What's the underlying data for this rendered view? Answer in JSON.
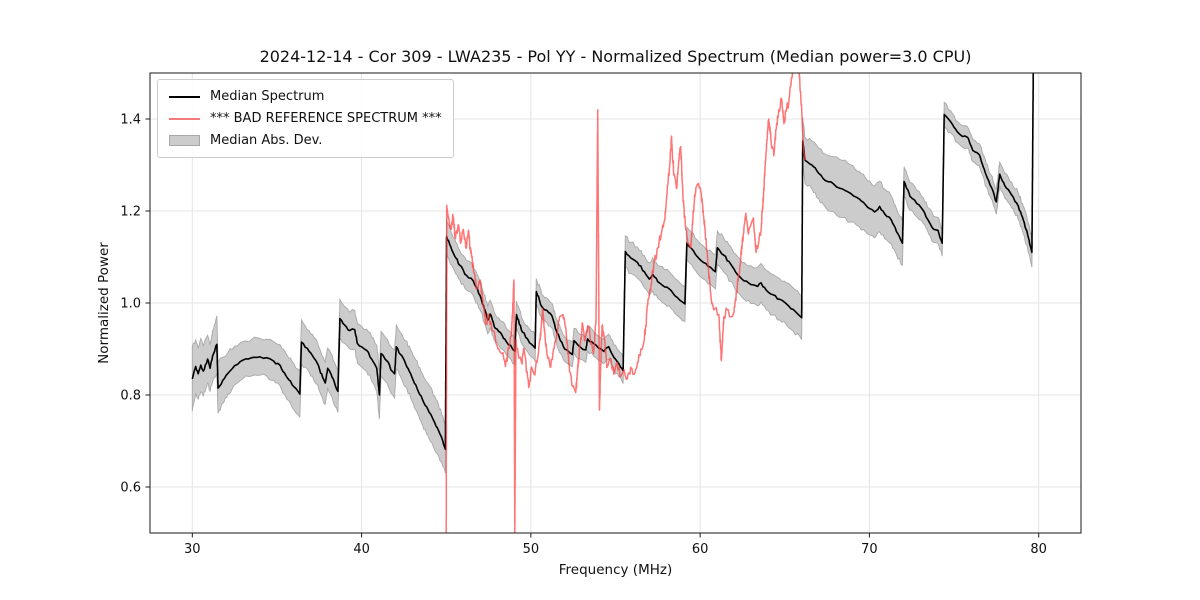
{
  "chart_data": {
    "type": "line",
    "title": "2024-12-14 - Cor 309 - LWA235 - Pol YY - Normalized Spectrum (Median power=3.0 CPU)",
    "xlabel": "Frequency (MHz)",
    "ylabel": "Normalized Power",
    "xlim": [
      27.5,
      82.5
    ],
    "ylim": [
      0.5,
      1.5
    ],
    "xticks": [
      30,
      40,
      50,
      60,
      70,
      80
    ],
    "xtick_labels": [
      "30",
      "40",
      "50",
      "60",
      "70",
      "80"
    ],
    "yticks": [
      0.6,
      0.8,
      1.0,
      1.2,
      1.4
    ],
    "ytick_labels": [
      "0.6",
      "0.8",
      "1.0",
      "1.2",
      "1.4"
    ],
    "grid": true,
    "grid_color": "#e4e4e4",
    "background": "#ffffff",
    "legend_position": "upper-left",
    "legend": [
      {
        "label": "Median Spectrum",
        "color": "#000000",
        "type": "line"
      },
      {
        "label": "*** BAD REFERENCE SPECTRUM ***",
        "color": "#f57b7b",
        "type": "line"
      },
      {
        "label": "Median Abs. Dev.",
        "color": "#cccccc",
        "type": "patch"
      }
    ],
    "series": {
      "median": {
        "name": "Median Spectrum",
        "color": "#000000",
        "x": [
          30.0,
          30.2,
          30.35,
          30.5,
          30.65,
          30.9,
          31.05,
          31.2,
          31.45,
          31.52,
          31.8,
          32.1,
          32.5,
          33.0,
          33.5,
          34.0,
          34.4,
          34.8,
          35.2,
          35.6,
          36.0,
          36.35,
          36.45,
          36.9,
          37.4,
          37.7,
          37.85,
          38.0,
          38.2,
          38.45,
          38.6,
          38.72,
          39.0,
          39.3,
          39.6,
          39.75,
          40.0,
          40.3,
          40.6,
          40.9,
          41.05,
          41.15,
          41.5,
          41.8,
          41.95,
          42.05,
          42.3,
          42.6,
          42.9,
          43.2,
          43.6,
          44.0,
          44.4,
          44.8,
          44.95,
          45.02,
          45.4,
          45.8,
          46.2,
          46.6,
          47.0,
          47.25,
          47.45,
          47.6,
          47.9,
          48.1,
          48.3,
          48.55,
          48.8,
          49.05,
          49.15,
          49.5,
          49.8,
          50.05,
          50.25,
          50.32,
          50.65,
          50.95,
          51.25,
          51.5,
          51.75,
          52.0,
          52.3,
          52.45,
          52.55,
          52.9,
          53.25,
          53.35,
          53.7,
          54.0,
          54.3,
          54.6,
          54.9,
          55.2,
          55.45,
          55.58,
          55.9,
          56.3,
          56.7,
          57.0,
          57.2,
          57.5,
          57.9,
          58.2,
          58.5,
          58.8,
          59.1,
          59.22,
          59.5,
          59.8,
          60.2,
          60.6,
          60.9,
          61.02,
          61.4,
          61.8,
          62.2,
          62.6,
          63.0,
          63.4,
          63.6,
          63.9,
          64.3,
          64.7,
          65.1,
          65.5,
          66.0,
          66.06,
          66.2,
          66.6,
          67.0,
          67.4,
          67.9,
          68.4,
          68.9,
          69.4,
          69.9,
          70.3,
          70.6,
          70.9,
          71.3,
          71.6,
          71.95,
          72.05,
          72.4,
          72.8,
          73.2,
          73.5,
          73.8,
          74.05,
          74.3,
          74.42,
          74.8,
          75.2,
          75.5,
          75.8,
          76.1,
          76.5,
          76.9,
          77.2,
          77.5,
          77.7,
          78.0,
          78.4,
          78.8,
          79.1,
          79.35,
          79.6,
          79.68
        ],
        "y": [
          0.835,
          0.862,
          0.846,
          0.865,
          0.852,
          0.878,
          0.858,
          0.885,
          0.91,
          0.815,
          0.832,
          0.847,
          0.864,
          0.876,
          0.881,
          0.883,
          0.881,
          0.874,
          0.864,
          0.838,
          0.818,
          0.802,
          0.915,
          0.895,
          0.868,
          0.838,
          0.826,
          0.858,
          0.845,
          0.82,
          0.808,
          0.966,
          0.952,
          0.94,
          0.942,
          0.912,
          0.905,
          0.897,
          0.878,
          0.858,
          0.8,
          0.89,
          0.874,
          0.852,
          0.846,
          0.905,
          0.888,
          0.868,
          0.846,
          0.822,
          0.79,
          0.762,
          0.732,
          0.7,
          0.682,
          1.145,
          1.11,
          1.082,
          1.06,
          1.048,
          1.016,
          0.988,
          0.963,
          0.976,
          0.945,
          0.938,
          0.93,
          0.916,
          0.908,
          0.895,
          0.975,
          0.937,
          0.922,
          0.91,
          0.902,
          1.025,
          0.992,
          0.984,
          0.972,
          0.94,
          0.918,
          0.9,
          0.892,
          0.888,
          0.918,
          0.905,
          0.898,
          0.922,
          0.912,
          0.902,
          0.895,
          0.905,
          0.882,
          0.868,
          0.853,
          1.112,
          1.098,
          1.088,
          1.068,
          1.052,
          1.062,
          1.046,
          1.035,
          1.03,
          1.016,
          1.006,
          0.998,
          1.13,
          1.118,
          1.102,
          1.088,
          1.078,
          1.068,
          1.12,
          1.104,
          1.085,
          1.062,
          1.048,
          1.04,
          1.036,
          1.044,
          1.028,
          1.018,
          1.008,
          0.998,
          0.986,
          0.968,
          1.352,
          1.31,
          1.3,
          1.282,
          1.266,
          1.258,
          1.248,
          1.238,
          1.226,
          1.208,
          1.198,
          1.21,
          1.194,
          1.18,
          1.155,
          1.13,
          1.264,
          1.232,
          1.216,
          1.2,
          1.178,
          1.16,
          1.158,
          1.13,
          1.41,
          1.394,
          1.372,
          1.362,
          1.36,
          1.332,
          1.322,
          1.278,
          1.252,
          1.22,
          1.28,
          1.255,
          1.235,
          1.21,
          1.18,
          1.148,
          1.11,
          1.5
        ]
      },
      "mad": {
        "name": "Median Abs. Dev.",
        "fill": "#cccccc",
        "edge": "#a8a8a8",
        "half_width": [
          0.07,
          0.058,
          0.055,
          0.058,
          0.055,
          0.052,
          0.05,
          0.055,
          0.062,
          0.055,
          0.05,
          0.045,
          0.042,
          0.04,
          0.04,
          0.04,
          0.04,
          0.042,
          0.045,
          0.048,
          0.05,
          0.05,
          0.048,
          0.045,
          0.045,
          0.046,
          0.046,
          0.044,
          0.045,
          0.046,
          0.046,
          0.042,
          0.04,
          0.04,
          0.042,
          0.043,
          0.044,
          0.046,
          0.048,
          0.05,
          0.052,
          0.048,
          0.048,
          0.05,
          0.052,
          0.048,
          0.048,
          0.05,
          0.052,
          0.054,
          0.056,
          0.058,
          0.058,
          0.055,
          0.052,
          0.038,
          0.034,
          0.032,
          0.032,
          0.032,
          0.031,
          0.03,
          0.03,
          0.03,
          0.03,
          0.03,
          0.03,
          0.029,
          0.029,
          0.029,
          0.029,
          0.028,
          0.028,
          0.028,
          0.028,
          0.028,
          0.027,
          0.027,
          0.027,
          0.027,
          0.027,
          0.027,
          0.027,
          0.027,
          0.027,
          0.027,
          0.027,
          0.027,
          0.027,
          0.027,
          0.027,
          0.027,
          0.027,
          0.028,
          0.028,
          0.034,
          0.034,
          0.034,
          0.035,
          0.035,
          0.036,
          0.036,
          0.037,
          0.037,
          0.038,
          0.038,
          0.038,
          0.035,
          0.035,
          0.036,
          0.036,
          0.037,
          0.037,
          0.036,
          0.037,
          0.038,
          0.039,
          0.04,
          0.041,
          0.042,
          0.042,
          0.043,
          0.044,
          0.045,
          0.046,
          0.047,
          0.048,
          0.052,
          0.05,
          0.052,
          0.055,
          0.058,
          0.06,
          0.062,
          0.062,
          0.06,
          0.058,
          0.056,
          0.055,
          0.054,
          0.052,
          0.05,
          0.048,
          0.032,
          0.03,
          0.029,
          0.028,
          0.028,
          0.028,
          0.028,
          0.028,
          0.026,
          0.024,
          0.023,
          0.023,
          0.023,
          0.024,
          0.024,
          0.025,
          0.026,
          0.027,
          0.026,
          0.027,
          0.028,
          0.029,
          0.03,
          0.031,
          0.032,
          0.02
        ]
      },
      "bad_reference": {
        "name": "*** BAD REFERENCE SPECTRUM ***",
        "color": "#ff3e3e",
        "opacity": 0.72,
        "x": [
          45.0,
          45.03,
          45.15,
          45.3,
          45.4,
          45.55,
          45.7,
          45.85,
          46.0,
          46.15,
          46.3,
          46.5,
          46.65,
          46.8,
          47.0,
          47.2,
          47.35,
          47.5,
          47.7,
          47.9,
          48.1,
          48.3,
          48.5,
          48.7,
          48.85,
          49.0,
          49.05,
          49.12,
          49.3,
          49.45,
          49.6,
          49.75,
          49.9,
          50.05,
          50.2,
          50.4,
          50.55,
          50.7,
          50.85,
          51.0,
          51.15,
          51.3,
          51.5,
          51.7,
          51.9,
          52.1,
          52.3,
          52.5,
          52.65,
          52.85,
          53.05,
          53.2,
          53.4,
          53.55,
          53.7,
          53.85,
          53.95,
          54.05,
          54.2,
          54.35,
          54.5,
          54.7,
          54.9,
          55.1,
          55.3,
          55.5,
          55.7,
          55.9,
          56.1,
          56.3,
          56.5,
          56.7,
          56.9,
          57.1,
          57.3,
          57.5,
          57.7,
          57.9,
          58.05,
          58.2,
          58.3,
          58.45,
          58.6,
          58.75,
          58.85,
          59.0,
          59.15,
          59.3,
          59.45,
          59.6,
          59.75,
          59.9,
          60.05,
          60.2,
          60.35,
          60.5,
          60.65,
          60.8,
          60.95,
          61.1,
          61.25,
          61.4,
          61.6,
          61.8,
          62.0,
          62.2,
          62.4,
          62.55,
          62.7,
          62.85,
          63.0,
          63.15,
          63.3,
          63.45,
          63.6,
          63.75,
          63.9,
          64.05,
          64.2,
          64.35,
          64.5,
          64.65,
          64.8,
          64.95,
          65.1,
          65.25,
          65.4,
          65.55,
          65.7,
          65.85,
          66.0,
          66.1,
          66.2
        ],
        "y": [
          0.5,
          1.21,
          1.185,
          1.16,
          1.19,
          1.14,
          1.17,
          1.13,
          1.16,
          1.12,
          1.155,
          1.1,
          1.065,
          1.03,
          1.05,
          0.99,
          0.955,
          0.975,
          0.94,
          0.925,
          0.9,
          0.89,
          0.862,
          0.9,
          0.93,
          1.05,
          0.5,
          0.92,
          0.88,
          0.87,
          0.9,
          0.85,
          0.82,
          0.86,
          0.845,
          0.88,
          0.92,
          0.985,
          0.92,
          0.88,
          0.86,
          0.89,
          0.92,
          0.97,
          0.975,
          0.93,
          0.85,
          0.82,
          0.805,
          0.89,
          0.955,
          0.92,
          0.95,
          0.91,
          0.89,
          0.965,
          1.42,
          0.77,
          0.95,
          0.92,
          0.86,
          0.88,
          0.845,
          0.87,
          0.84,
          0.855,
          0.835,
          0.86,
          0.845,
          0.87,
          0.9,
          0.92,
          0.995,
          1.04,
          1.09,
          1.12,
          1.15,
          1.18,
          1.24,
          1.3,
          1.36,
          1.28,
          1.25,
          1.31,
          1.34,
          1.22,
          1.16,
          1.13,
          1.12,
          1.2,
          1.25,
          1.26,
          1.24,
          1.19,
          1.14,
          1.07,
          1.01,
          0.985,
          0.99,
          0.975,
          0.875,
          0.97,
          0.985,
          0.97,
          0.98,
          1.04,
          1.1,
          1.15,
          1.195,
          1.15,
          1.17,
          1.185,
          1.11,
          1.13,
          1.16,
          1.24,
          1.33,
          1.4,
          1.35,
          1.32,
          1.38,
          1.42,
          1.445,
          1.39,
          1.42,
          1.44,
          1.49,
          1.53,
          1.55,
          1.5,
          1.42,
          1.34,
          1.31
        ]
      }
    }
  }
}
